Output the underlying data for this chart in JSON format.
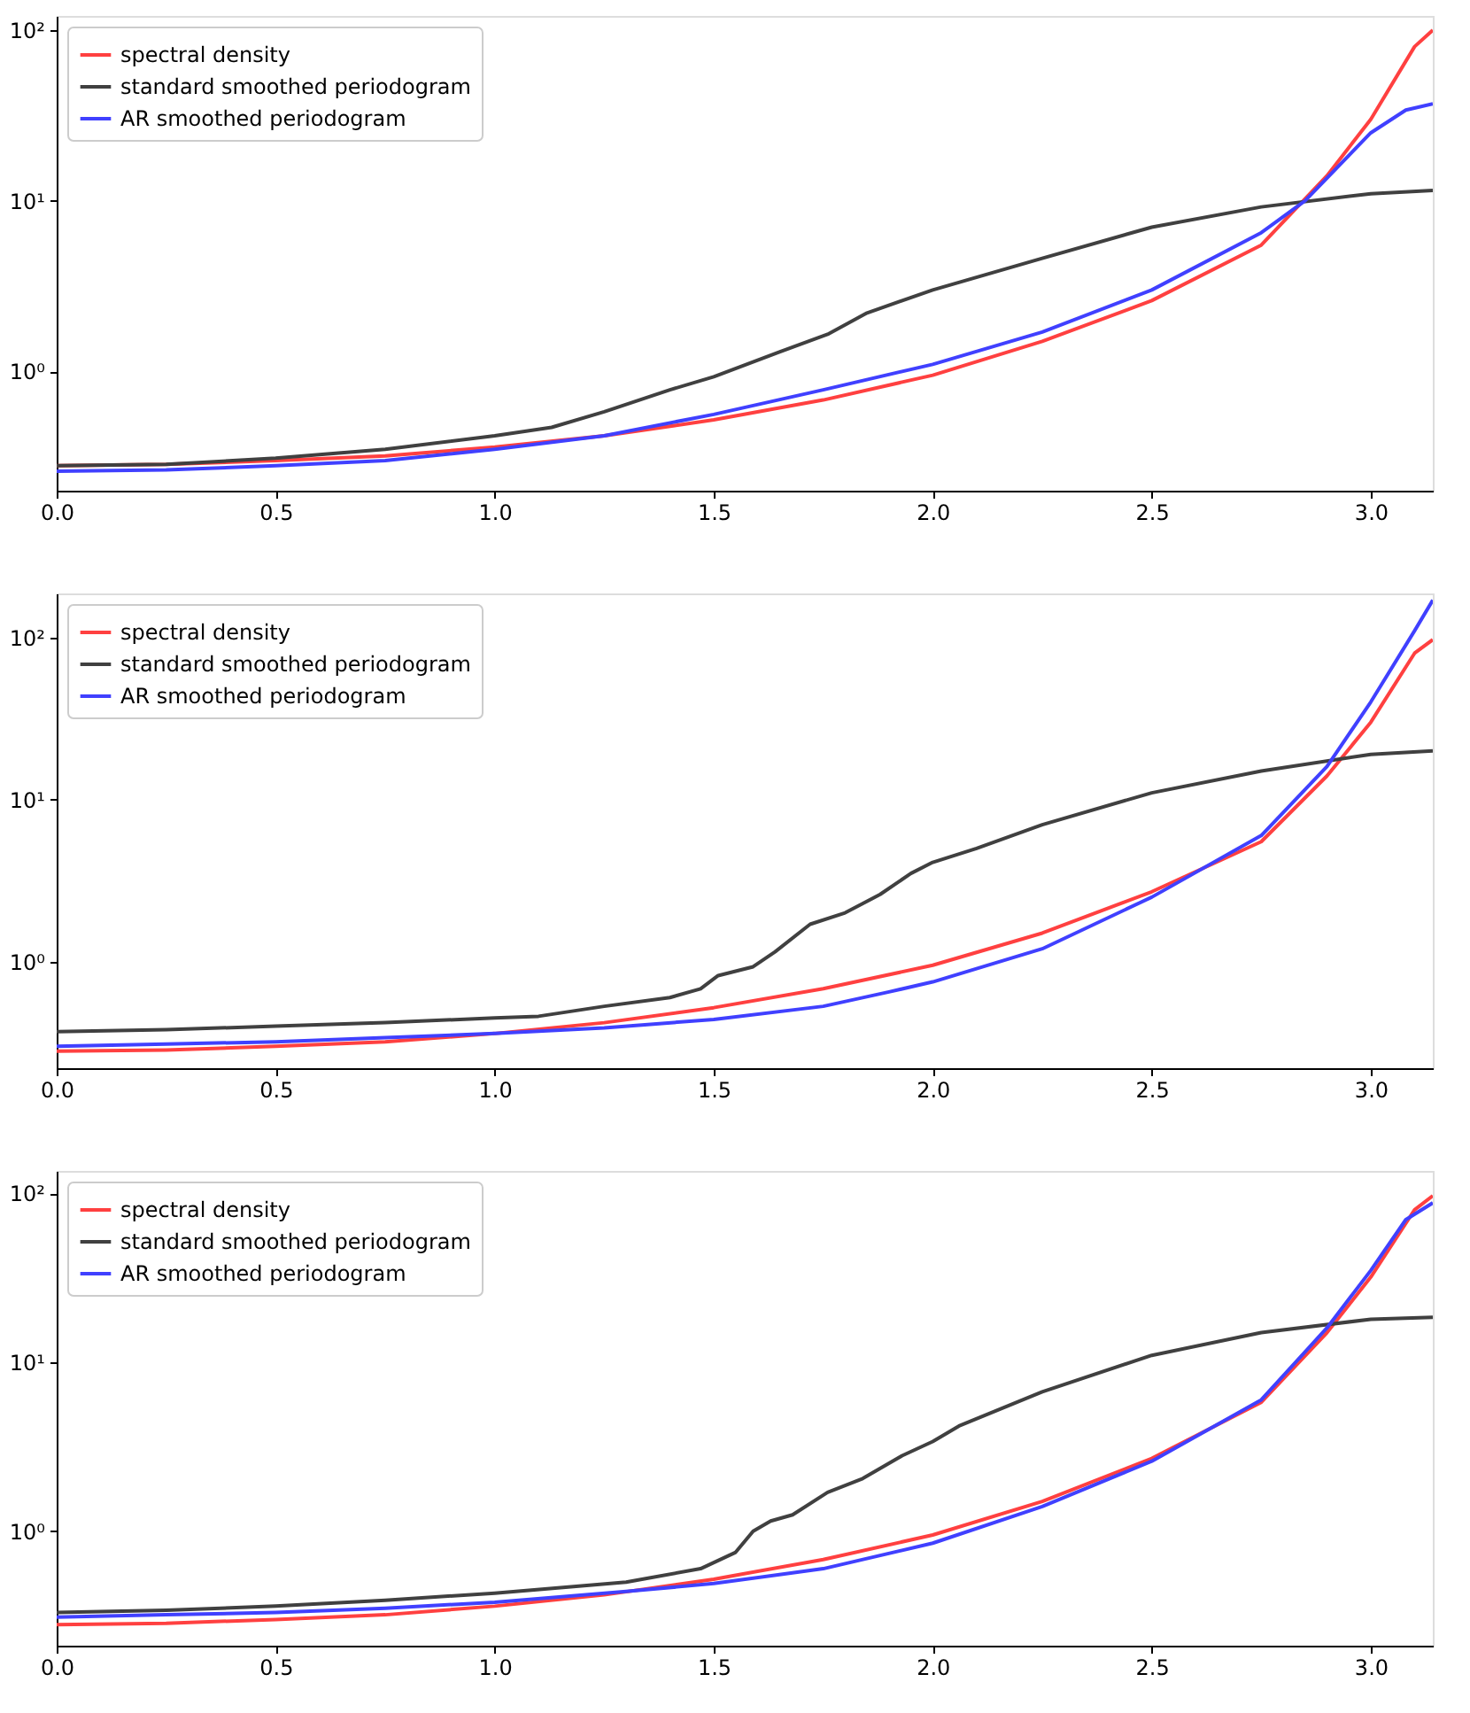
{
  "chart_data": [
    {
      "type": "line",
      "xlim": [
        0,
        3.14159
      ],
      "ylim": [
        0.2,
        121
      ],
      "xticks": [
        {
          "value": 0,
          "label": "0.0"
        },
        0.5,
        {
          "value": 1,
          "label": "1.0"
        },
        1.5,
        {
          "value": 2,
          "label": "2.0"
        },
        2.5,
        {
          "value": 3,
          "label": "3.0"
        }
      ],
      "yticks": [
        {
          "value": 1,
          "label": "10⁰"
        },
        {
          "value": 10,
          "label": "10¹"
        },
        {
          "value": 100,
          "label": "10²"
        }
      ],
      "log": "y",
      "grid": false,
      "legend": "top left",
      "line_style": "solid",
      "marker": "none",
      "series": [
        {
          "name": "spectral density",
          "color": "#ff4040",
          "x": [
            0,
            0.25,
            0.5,
            0.75,
            1.0,
            1.25,
            1.5,
            1.75,
            2.0,
            2.25,
            2.5,
            2.75,
            2.9,
            3.0,
            3.1,
            3.14159
          ],
          "values": [
            0.28,
            0.285,
            0.3,
            0.32,
            0.36,
            0.42,
            0.52,
            0.68,
            0.95,
            1.5,
            2.6,
            5.5,
            14,
            30,
            80,
            100
          ]
        },
        {
          "name": "standard smoothed periodogram",
          "color": "#404040",
          "x": [
            0,
            0.25,
            0.5,
            0.75,
            1.0,
            1.13,
            1.25,
            1.4,
            1.5,
            1.65,
            1.76,
            1.85,
            2.0,
            2.25,
            2.5,
            2.75,
            3.0,
            3.14159
          ],
          "values": [
            0.28,
            0.285,
            0.31,
            0.35,
            0.42,
            0.47,
            0.58,
            0.78,
            0.93,
            1.3,
            1.65,
            2.2,
            3.0,
            4.6,
            7.0,
            9.2,
            11,
            11.5
          ]
        },
        {
          "name": "AR smoothed periodogram",
          "color": "#4040ff",
          "x": [
            0,
            0.25,
            0.5,
            0.75,
            1.0,
            1.25,
            1.5,
            1.75,
            2.0,
            2.25,
            2.5,
            2.75,
            2.85,
            3.0,
            3.08,
            3.14159
          ],
          "values": [
            0.26,
            0.265,
            0.28,
            0.3,
            0.35,
            0.42,
            0.56,
            0.78,
            1.1,
            1.7,
            3.0,
            6.5,
            10,
            25,
            34,
            37
          ]
        }
      ]
    },
    {
      "type": "line",
      "xlim": [
        0,
        3.14159
      ],
      "ylim": [
        0.22,
        187
      ],
      "xticks": [
        {
          "value": 0,
          "label": "0.0"
        },
        0.5,
        {
          "value": 1,
          "label": "1.0"
        },
        1.5,
        {
          "value": 2,
          "label": "2.0"
        },
        2.5,
        {
          "value": 3,
          "label": "3.0"
        }
      ],
      "yticks": [
        {
          "value": 1,
          "label": "10⁰"
        },
        {
          "value": 10,
          "label": "10¹"
        },
        {
          "value": 100,
          "label": "10²"
        }
      ],
      "log": "y",
      "grid": false,
      "legend": "top left",
      "line_style": "solid",
      "marker": "none",
      "series": [
        {
          "name": "spectral density",
          "color": "#ff4040",
          "x": [
            0,
            0.25,
            0.5,
            0.75,
            1.0,
            1.25,
            1.5,
            1.75,
            2.0,
            2.25,
            2.5,
            2.75,
            2.9,
            3.0,
            3.1,
            3.14159
          ],
          "values": [
            0.28,
            0.285,
            0.3,
            0.32,
            0.36,
            0.42,
            0.52,
            0.68,
            0.95,
            1.5,
            2.7,
            5.5,
            14,
            30,
            80,
            97
          ]
        },
        {
          "name": "standard smoothed periodogram",
          "color": "#404040",
          "x": [
            0,
            0.25,
            0.5,
            0.75,
            1.0,
            1.1,
            1.25,
            1.4,
            1.47,
            1.51,
            1.59,
            1.64,
            1.72,
            1.8,
            1.88,
            1.95,
            2.0,
            2.1,
            2.25,
            2.5,
            2.75,
            3.0,
            3.14159
          ],
          "values": [
            0.37,
            0.38,
            0.4,
            0.42,
            0.45,
            0.46,
            0.53,
            0.6,
            0.68,
            0.82,
            0.93,
            1.15,
            1.7,
            2.0,
            2.6,
            3.5,
            4.1,
            5.0,
            7.0,
            11,
            15,
            19,
            20
          ]
        },
        {
          "name": "AR smoothed periodogram",
          "color": "#4040ff",
          "x": [
            0,
            0.25,
            0.5,
            0.75,
            1.0,
            1.25,
            1.5,
            1.75,
            1.9,
            2.0,
            2.25,
            2.5,
            2.75,
            2.9,
            3.0,
            3.1,
            3.14159
          ],
          "values": [
            0.3,
            0.31,
            0.32,
            0.34,
            0.36,
            0.39,
            0.44,
            0.53,
            0.65,
            0.75,
            1.2,
            2.5,
            6,
            16,
            40,
            110,
            170
          ]
        }
      ]
    },
    {
      "type": "line",
      "xlim": [
        0,
        3.14159
      ],
      "ylim": [
        0.21,
        136
      ],
      "xticks": [
        {
          "value": 0,
          "label": "0.0"
        },
        0.5,
        {
          "value": 1,
          "label": "1.0"
        },
        1.5,
        {
          "value": 2,
          "label": "2.0"
        },
        2.5,
        {
          "value": 3,
          "label": "3.0"
        }
      ],
      "yticks": [
        {
          "value": 1,
          "label": "10⁰"
        },
        {
          "value": 10,
          "label": "10¹"
        },
        {
          "value": 100,
          "label": "10²"
        }
      ],
      "log": "y",
      "grid": false,
      "legend": "top left",
      "line_style": "solid",
      "marker": "none",
      "series": [
        {
          "name": "spectral density",
          "color": "#ff4040",
          "x": [
            0,
            0.25,
            0.5,
            0.75,
            1.0,
            1.25,
            1.5,
            1.75,
            2.0,
            2.25,
            2.5,
            2.75,
            2.9,
            3.0,
            3.1,
            3.14159
          ],
          "values": [
            0.28,
            0.285,
            0.3,
            0.32,
            0.36,
            0.42,
            0.52,
            0.68,
            0.95,
            1.5,
            2.7,
            5.8,
            15,
            32,
            80,
            97
          ]
        },
        {
          "name": "standard smoothed periodogram",
          "color": "#404040",
          "x": [
            0,
            0.25,
            0.5,
            0.75,
            1.0,
            1.3,
            1.47,
            1.55,
            1.59,
            1.63,
            1.68,
            1.76,
            1.84,
            1.93,
            2.0,
            2.06,
            2.25,
            2.5,
            2.75,
            3.0,
            3.14159
          ],
          "values": [
            0.33,
            0.34,
            0.36,
            0.39,
            0.43,
            0.5,
            0.6,
            0.75,
            1.0,
            1.15,
            1.25,
            1.7,
            2.05,
            2.8,
            3.4,
            4.2,
            6.7,
            11,
            15,
            18,
            18.5
          ]
        },
        {
          "name": "AR smoothed periodogram",
          "color": "#4040ff",
          "x": [
            0,
            0.25,
            0.5,
            0.75,
            1.0,
            1.3,
            1.5,
            1.75,
            2.0,
            2.25,
            2.5,
            2.75,
            2.9,
            3.0,
            3.08,
            3.14159
          ],
          "values": [
            0.31,
            0.32,
            0.33,
            0.35,
            0.38,
            0.44,
            0.49,
            0.6,
            0.85,
            1.4,
            2.6,
            6,
            16,
            35,
            70,
            88
          ]
        }
      ]
    }
  ]
}
